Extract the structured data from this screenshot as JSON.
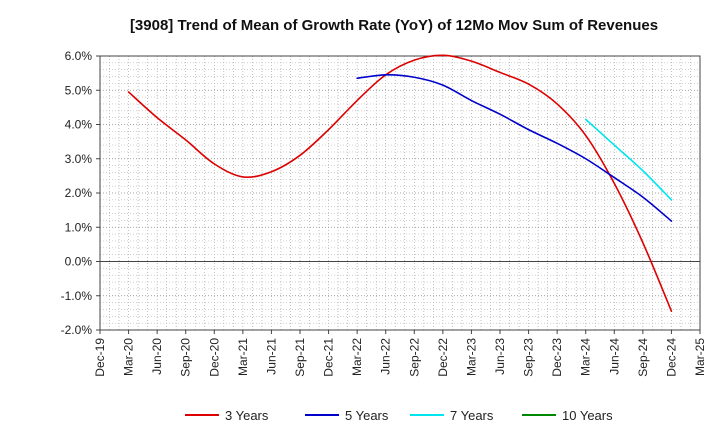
{
  "chart_data": {
    "type": "line",
    "title": "[3908]  Trend of Mean of Growth Rate (YoY) of 12Mo Mov Sum of Revenues",
    "xlabel": "",
    "ylabel": "",
    "x_ticks": [
      "Dec-19",
      "Mar-20",
      "Jun-20",
      "Sep-20",
      "Dec-20",
      "Mar-21",
      "Jun-21",
      "Sep-21",
      "Dec-21",
      "Mar-22",
      "Jun-22",
      "Sep-22",
      "Dec-22",
      "Mar-23",
      "Jun-23",
      "Sep-23",
      "Dec-23",
      "Mar-24",
      "Jun-24",
      "Sep-24",
      "Dec-24",
      "Mar-25"
    ],
    "y_ticks": [
      "6.0%",
      "5.0%",
      "4.0%",
      "3.0%",
      "2.0%",
      "1.0%",
      "0.0%",
      "-1.0%",
      "-2.0%"
    ],
    "ylim": [
      -2.0,
      6.0
    ],
    "grid": true,
    "legend_position": "bottom",
    "series": [
      {
        "name": "3 Years",
        "color": "#dd0000",
        "points": [
          [
            "Mar-20",
            4.95
          ],
          [
            "Jun-20",
            4.2
          ],
          [
            "Sep-20",
            3.55
          ],
          [
            "Dec-20",
            2.85
          ],
          [
            "Mar-21",
            2.47
          ],
          [
            "Jun-21",
            2.62
          ],
          [
            "Sep-21",
            3.1
          ],
          [
            "Dec-21",
            3.85
          ],
          [
            "Mar-22",
            4.7
          ],
          [
            "Jun-22",
            5.45
          ],
          [
            "Sep-22",
            5.88
          ],
          [
            "Dec-22",
            6.02
          ],
          [
            "Mar-23",
            5.85
          ],
          [
            "Jun-23",
            5.52
          ],
          [
            "Sep-23",
            5.18
          ],
          [
            "Dec-23",
            4.6
          ],
          [
            "Mar-24",
            3.68
          ],
          [
            "Jun-24",
            2.28
          ],
          [
            "Sep-24",
            0.55
          ],
          [
            "Dec-24",
            -1.45
          ]
        ]
      },
      {
        "name": "5 Years",
        "color": "#0000cc",
        "points": [
          [
            "Mar-22",
            5.35
          ],
          [
            "Jun-22",
            5.45
          ],
          [
            "Sep-22",
            5.38
          ],
          [
            "Dec-22",
            5.15
          ],
          [
            "Mar-23",
            4.7
          ],
          [
            "Jun-23",
            4.3
          ],
          [
            "Sep-23",
            3.85
          ],
          [
            "Dec-23",
            3.45
          ],
          [
            "Mar-24",
            3.0
          ],
          [
            "Jun-24",
            2.45
          ],
          [
            "Sep-24",
            1.88
          ],
          [
            "Dec-24",
            1.18
          ]
        ]
      },
      {
        "name": "7 Years",
        "color": "#00e5ee",
        "points": [
          [
            "Mar-24",
            4.15
          ],
          [
            "Jun-24",
            3.4
          ],
          [
            "Sep-24",
            2.65
          ],
          [
            "Dec-24",
            1.8
          ]
        ]
      },
      {
        "name": "10 Years",
        "color": "#008800",
        "points": []
      }
    ]
  }
}
